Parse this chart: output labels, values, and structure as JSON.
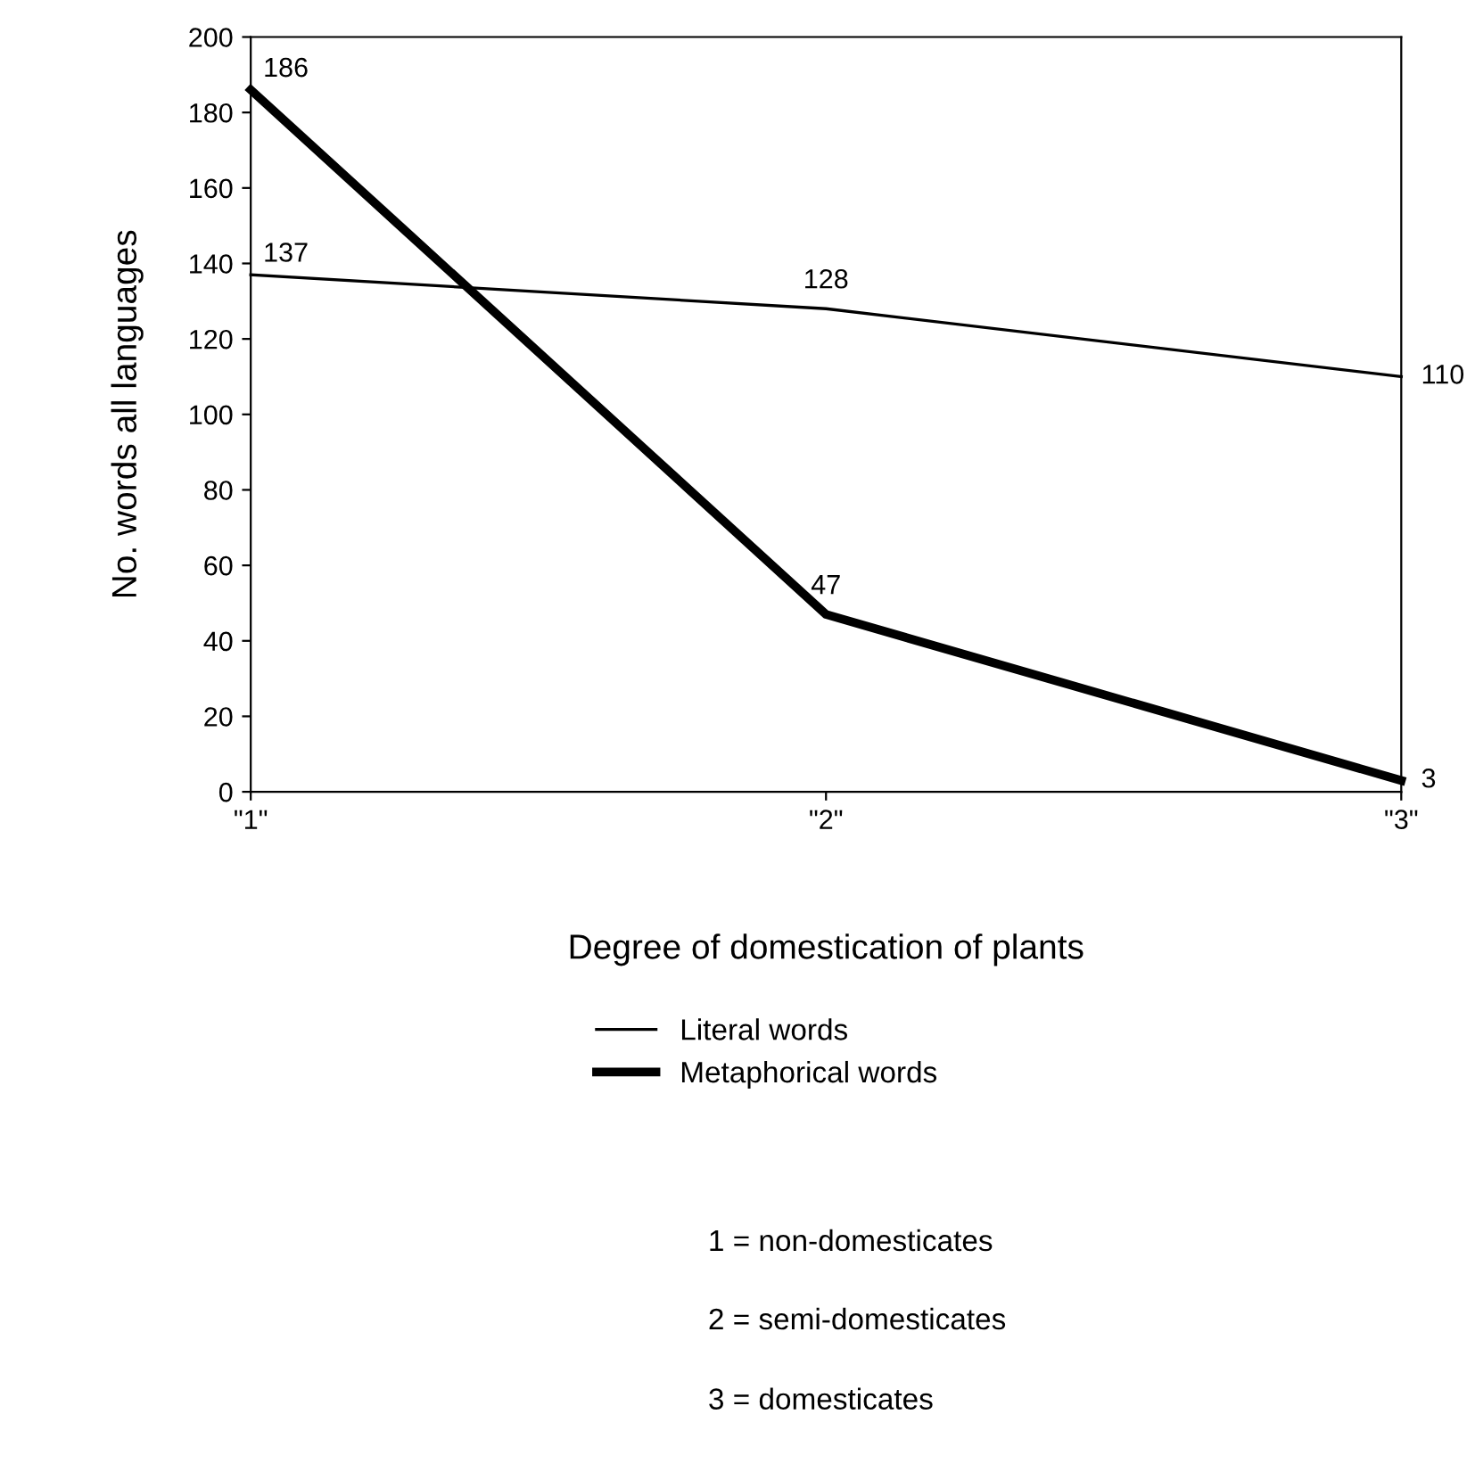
{
  "chart_data": {
    "type": "line",
    "xlabel": "Degree of domestication of plants",
    "ylabel": "No. words all languages",
    "categories": [
      "\"1\"",
      "\"2\"",
      "\"3\""
    ],
    "series": [
      {
        "name": "Literal words",
        "color": "#000000",
        "values": [
          137,
          128,
          110
        ]
      },
      {
        "name": "Metaphorical words",
        "color": "#000000",
        "values": [
          186,
          47,
          3
        ]
      }
    ],
    "ylim": [
      0,
      200
    ],
    "yticks": [
      0,
      20,
      40,
      60,
      80,
      100,
      120,
      140,
      160,
      180,
      200
    ],
    "grid": false,
    "legend": "bottom",
    "data_labels": true,
    "marker": "none",
    "line_style": "solid",
    "annotations": [
      "1 = non-domesticates",
      "2 = semi-domesticates",
      "3 = domesticates"
    ]
  }
}
